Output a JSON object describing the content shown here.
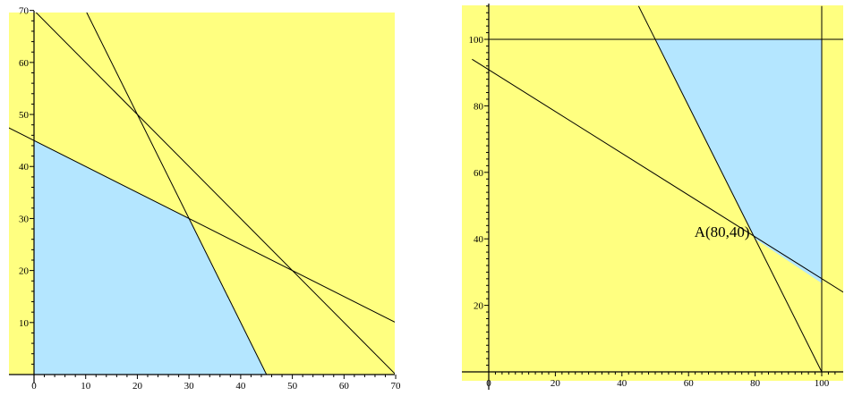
{
  "chart_data": [
    {
      "type": "region",
      "title": "",
      "xlabel": "",
      "ylabel": "",
      "xlim": [
        0,
        70
      ],
      "ylim": [
        0,
        70
      ],
      "xticks": [
        0,
        10,
        20,
        30,
        40,
        50,
        60,
        70
      ],
      "yticks": [
        10,
        20,
        30,
        40,
        50,
        60,
        70
      ],
      "colors": {
        "background": "#ffff80",
        "region": "#b4e6ff",
        "line": "#000000"
      },
      "lines": [
        {
          "points": [
            [
              -5,
              47.5
            ],
            [
              70,
              10
            ]
          ]
        },
        {
          "points": [
            [
              0,
              70
            ],
            [
              70,
              0
            ]
          ]
        },
        {
          "points": [
            [
              10,
              70
            ],
            [
              45,
              0
            ]
          ]
        }
      ],
      "feasible_region": [
        [
          0,
          0
        ],
        [
          45,
          0
        ],
        [
          30,
          30
        ],
        [
          0,
          45
        ]
      ],
      "annotations": []
    },
    {
      "type": "region",
      "title": "",
      "xlabel": "",
      "ylabel": "",
      "xlim": [
        0,
        105
      ],
      "ylim": [
        0,
        110
      ],
      "xticks": [
        0,
        20,
        40,
        60,
        80,
        100
      ],
      "yticks": [
        20,
        40,
        60,
        80,
        100
      ],
      "colors": {
        "background": "#ffff80",
        "region": "#b4e6ff",
        "line": "#000000"
      },
      "lines": [
        {
          "points": [
            [
              -5,
              94
            ],
            [
              108,
              23
            ]
          ]
        },
        {
          "points": [
            [
              45,
              110
            ],
            [
              100,
              0
            ]
          ]
        },
        {
          "points": [
            [
              0,
              100
            ],
            [
              108,
              100
            ]
          ]
        },
        {
          "points": [
            [
              100,
              0
            ],
            [
              100,
              110
            ]
          ]
        }
      ],
      "feasible_region": [
        [
          50,
          100
        ],
        [
          100,
          100
        ],
        [
          100,
          26.67
        ],
        [
          80,
          40
        ]
      ],
      "annotations": [
        {
          "text": "A(80,40)",
          "x": 80,
          "y": 40
        }
      ]
    }
  ]
}
